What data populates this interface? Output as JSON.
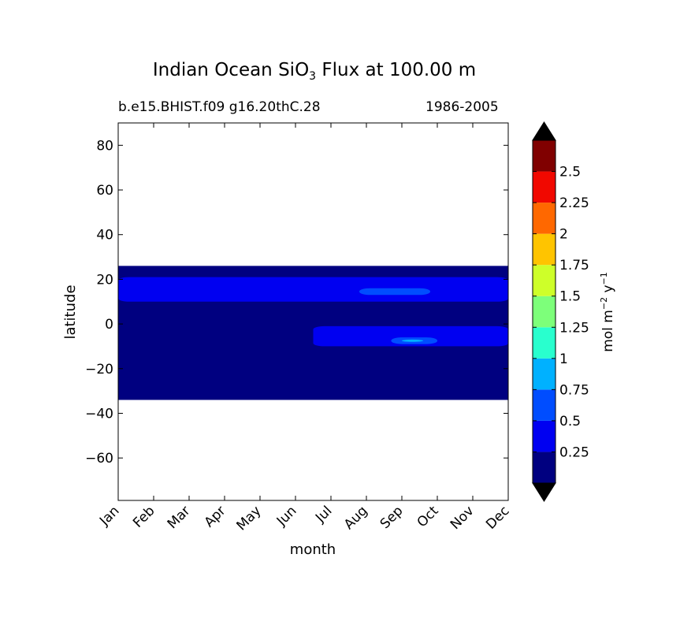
{
  "title_prefix": "Indian Ocean SiO",
  "title_sub": "3",
  "title_suffix": " Flux at 100.00 m",
  "subtitle_left": "b.e15.BHIST.f09 g16.20thC.28",
  "subtitle_right": "1986-2005",
  "chart_data": {
    "type": "heatmap",
    "title": "Indian Ocean SiO3 Flux at 100.00 m",
    "xlabel": "month",
    "ylabel": "latitude",
    "x_categories": [
      "Jan",
      "Feb",
      "Mar",
      "Apr",
      "May",
      "Jun",
      "Jul",
      "Aug",
      "Sep",
      "Oct",
      "Nov",
      "Dec"
    ],
    "y_ticks": [
      80,
      60,
      40,
      20,
      0,
      -20,
      -40,
      -60
    ],
    "ylim": [
      -79,
      90
    ],
    "data_lat_range": [
      -34,
      26
    ],
    "colorbar": {
      "label": "mol m⁻² y⁻¹",
      "levels": [
        0,
        0.25,
        0.5,
        0.75,
        1,
        1.25,
        1.5,
        1.75,
        2,
        2.25,
        2.5,
        2.75
      ],
      "tick_labels": [
        "0.25",
        "0.5",
        "0.75",
        "1",
        "1.25",
        "1.5",
        "1.75",
        "2",
        "2.25",
        "2.5"
      ],
      "colors": [
        "#000080",
        "#0000f1",
        "#004dff",
        "#00b1ff",
        "#29ffce",
        "#7dff7a",
        "#ceff29",
        "#ffc400",
        "#ff6800",
        "#f10800",
        "#800000"
      ],
      "extend": "both",
      "extend_color": "#000000"
    },
    "regions": [
      {
        "level_index": 0,
        "description": "background",
        "lat": [
          -34,
          26
        ],
        "month": [
          0,
          11
        ]
      },
      {
        "level_index": 1,
        "lat": [
          10,
          21
        ],
        "month": [
          0,
          11
        ],
        "note": "northern band"
      },
      {
        "level_index": 1,
        "lat": [
          -10,
          -1
        ],
        "month": [
          5.5,
          11
        ],
        "note": "southern band Jul-Dec"
      },
      {
        "level_index": 2,
        "lat": [
          13,
          16
        ],
        "month": [
          6.8,
          8.8
        ],
        "note": "Aug-Sep patch"
      },
      {
        "level_index": 2,
        "lat": [
          -9,
          -6
        ],
        "month": [
          7.7,
          9
        ],
        "note": "Sep patch"
      },
      {
        "level_index": 3,
        "lat": [
          -8,
          -7
        ],
        "month": [
          8,
          8.6
        ],
        "note": "Sep small patch"
      }
    ]
  }
}
